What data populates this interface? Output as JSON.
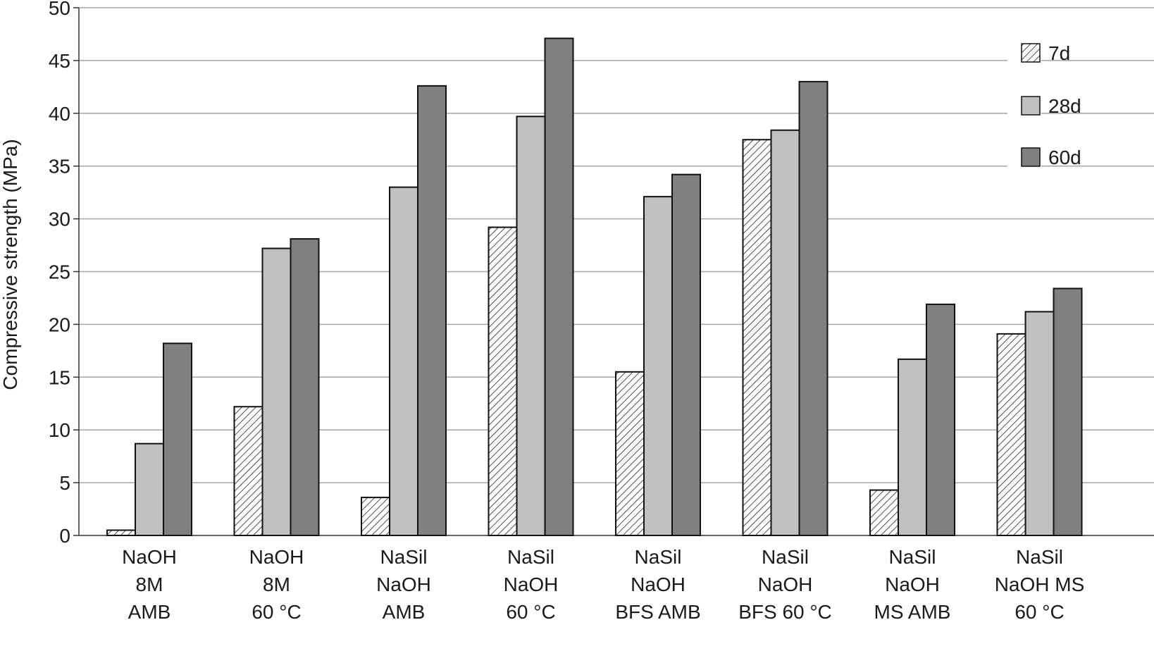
{
  "chart_data": {
    "type": "bar",
    "title": "",
    "ylabel": "Compressive strength (MPa)",
    "xlabel": "",
    "ylim": [
      0,
      50
    ],
    "yticks": [
      0,
      5,
      10,
      15,
      20,
      25,
      30,
      35,
      40,
      45,
      50
    ],
    "grid": "horizontal",
    "legend_position": "top-right",
    "categories": [
      [
        "NaOH",
        "8M",
        "AMB"
      ],
      [
        "NaOH",
        "8M",
        "60 °C"
      ],
      [
        "NaSil",
        "NaOH",
        "AMB"
      ],
      [
        "NaSil",
        "NaOH",
        "60 °C"
      ],
      [
        "NaSil",
        "NaOH",
        "BFS AMB"
      ],
      [
        "NaSil",
        "NaOH",
        "BFS 60 °C"
      ],
      [
        "NaSil",
        "NaOH",
        "MS AMB"
      ],
      [
        "NaSil",
        "NaOH MS",
        "60 °C"
      ]
    ],
    "series": [
      {
        "name": "7d",
        "style": "hatched",
        "color": "#ffffff",
        "values": [
          0.5,
          12.2,
          3.6,
          29.2,
          15.5,
          37.5,
          4.3,
          19.1
        ]
      },
      {
        "name": "28d",
        "style": "solid",
        "color": "#c0c0c0",
        "values": [
          8.7,
          27.2,
          33.0,
          39.7,
          32.1,
          38.4,
          16.7,
          21.2
        ]
      },
      {
        "name": "60d",
        "style": "solid",
        "color": "#808080",
        "values": [
          18.2,
          28.1,
          42.6,
          47.1,
          34.2,
          43.0,
          21.9,
          23.4
        ]
      }
    ]
  }
}
